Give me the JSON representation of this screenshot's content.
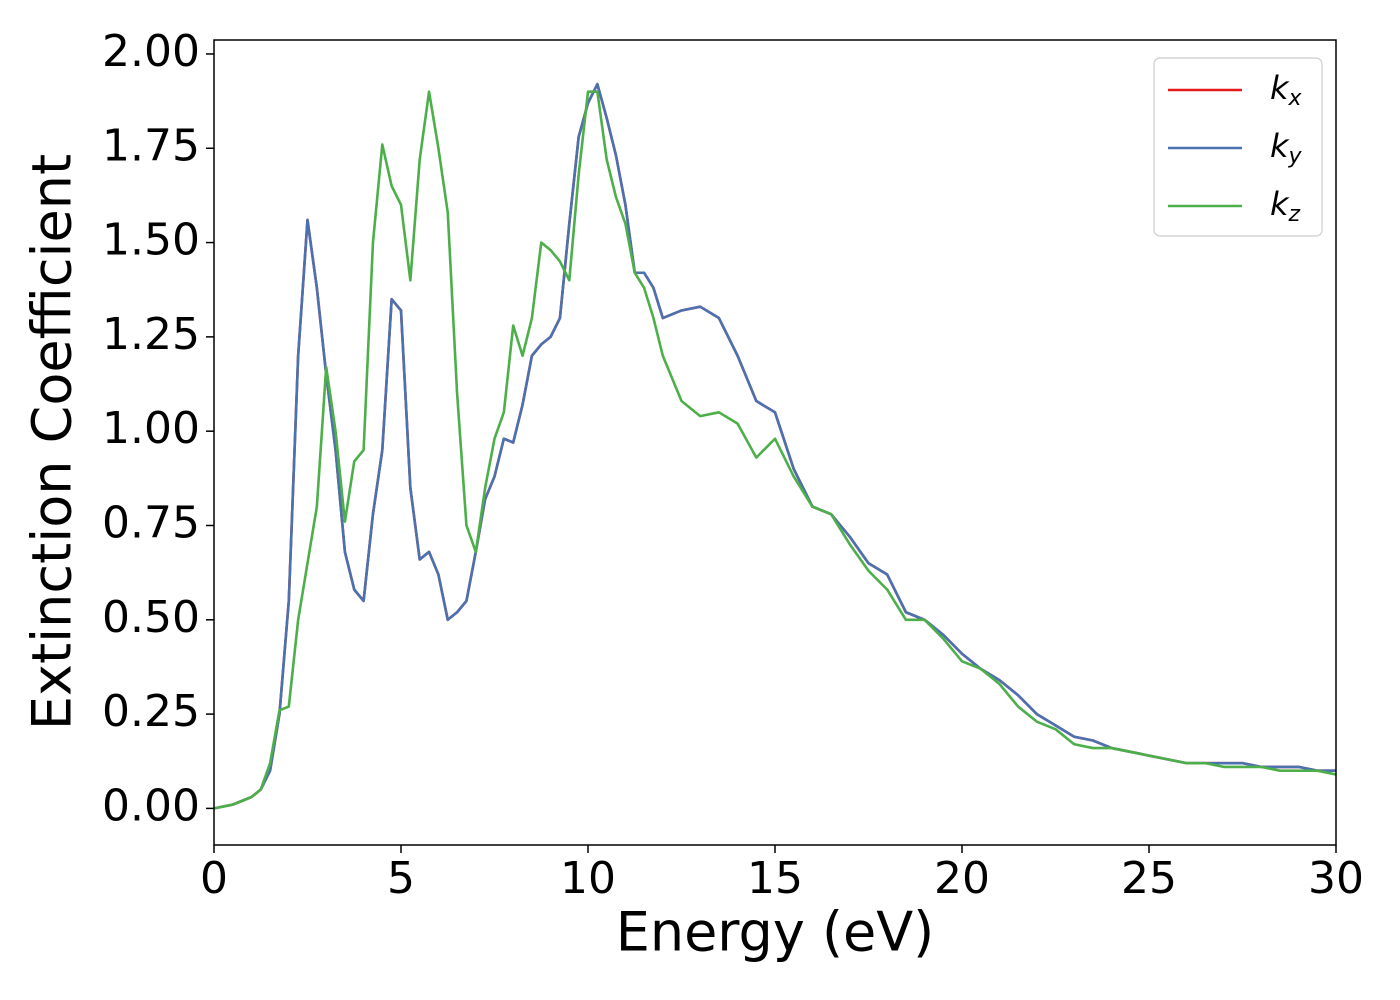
{
  "chart_data": {
    "type": "line",
    "x_label": "Energy (eV)",
    "y_label": "Extinction Coefficient",
    "x": [
      0,
      0.25,
      0.5,
      0.75,
      1,
      1.25,
      1.5,
      1.75,
      2,
      2.25,
      2.5,
      2.75,
      3,
      3.25,
      3.5,
      3.75,
      4,
      4.25,
      4.5,
      4.75,
      5,
      5.25,
      5.5,
      5.75,
      6,
      6.25,
      6.5,
      6.75,
      7,
      7.25,
      7.5,
      7.75,
      8,
      8.25,
      8.5,
      8.75,
      9,
      9.25,
      9.5,
      9.75,
      10,
      10.25,
      10.5,
      10.75,
      11,
      11.25,
      11.5,
      11.75,
      12,
      12.5,
      13,
      13.5,
      14,
      14.5,
      15,
      15.5,
      16,
      16.5,
      17,
      17.5,
      18,
      18.5,
      19,
      19.5,
      20,
      20.5,
      21,
      21.5,
      22,
      22.5,
      23,
      23.5,
      24,
      24.5,
      25,
      25.5,
      26,
      26.5,
      27,
      27.5,
      28,
      28.5,
      29,
      29.5,
      30
    ],
    "series": [
      {
        "name": "kx",
        "color": "#e41a1c",
        "values": [
          0,
          0.005,
          0.01,
          0.02,
          0.03,
          0.05,
          0.1,
          0.25,
          0.55,
          1.2,
          1.56,
          1.38,
          1.15,
          0.95,
          0.68,
          0.58,
          0.55,
          0.78,
          0.95,
          1.35,
          1.32,
          0.85,
          0.66,
          0.68,
          0.62,
          0.5,
          0.52,
          0.55,
          0.68,
          0.82,
          0.88,
          0.98,
          0.97,
          1.07,
          1.2,
          1.23,
          1.25,
          1.3,
          1.55,
          1.78,
          1.87,
          1.92,
          1.83,
          1.73,
          1.6,
          1.42,
          1.42,
          1.38,
          1.3,
          1.32,
          1.33,
          1.3,
          1.2,
          1.08,
          1.05,
          0.9,
          0.8,
          0.78,
          0.72,
          0.65,
          0.62,
          0.52,
          0.5,
          0.46,
          0.41,
          0.37,
          0.34,
          0.3,
          0.25,
          0.22,
          0.19,
          0.18,
          0.16,
          0.15,
          0.14,
          0.13,
          0.12,
          0.12,
          0.12,
          0.12,
          0.11,
          0.11,
          0.11,
          0.1,
          0.1
        ]
      },
      {
        "name": "ky",
        "color": "#4a72b0",
        "values": [
          0,
          0.005,
          0.01,
          0.02,
          0.03,
          0.05,
          0.1,
          0.25,
          0.55,
          1.2,
          1.56,
          1.38,
          1.15,
          0.95,
          0.68,
          0.58,
          0.55,
          0.78,
          0.95,
          1.35,
          1.32,
          0.85,
          0.66,
          0.68,
          0.62,
          0.5,
          0.52,
          0.55,
          0.68,
          0.82,
          0.88,
          0.98,
          0.97,
          1.07,
          1.2,
          1.23,
          1.25,
          1.3,
          1.55,
          1.78,
          1.87,
          1.92,
          1.83,
          1.73,
          1.6,
          1.42,
          1.42,
          1.38,
          1.3,
          1.32,
          1.33,
          1.3,
          1.2,
          1.08,
          1.05,
          0.9,
          0.8,
          0.78,
          0.72,
          0.65,
          0.62,
          0.52,
          0.5,
          0.46,
          0.41,
          0.37,
          0.34,
          0.3,
          0.25,
          0.22,
          0.19,
          0.18,
          0.16,
          0.15,
          0.14,
          0.13,
          0.12,
          0.12,
          0.12,
          0.12,
          0.11,
          0.11,
          0.11,
          0.1,
          0.1
        ]
      },
      {
        "name": "kz",
        "color": "#4daf4a",
        "values": [
          0,
          0.005,
          0.01,
          0.02,
          0.03,
          0.05,
          0.12,
          0.26,
          0.27,
          0.5,
          0.65,
          0.8,
          1.17,
          1.0,
          0.76,
          0.92,
          0.95,
          1.5,
          1.76,
          1.65,
          1.6,
          1.4,
          1.72,
          1.9,
          1.75,
          1.58,
          1.1,
          0.75,
          0.68,
          0.85,
          0.98,
          1.05,
          1.28,
          1.2,
          1.3,
          1.5,
          1.48,
          1.45,
          1.4,
          1.68,
          1.9,
          1.9,
          1.72,
          1.62,
          1.55,
          1.42,
          1.38,
          1.3,
          1.2,
          1.08,
          1.04,
          1.05,
          1.02,
          0.93,
          0.98,
          0.88,
          0.8,
          0.78,
          0.7,
          0.63,
          0.58,
          0.5,
          0.5,
          0.45,
          0.39,
          0.37,
          0.33,
          0.27,
          0.23,
          0.21,
          0.17,
          0.16,
          0.16,
          0.15,
          0.14,
          0.13,
          0.12,
          0.12,
          0.11,
          0.11,
          0.11,
          0.1,
          0.1,
          0.1,
          0.09
        ]
      }
    ],
    "xlim": [
      0,
      30
    ],
    "xticks": [
      0,
      5,
      10,
      15,
      20,
      25,
      30
    ],
    "ylim": [
      -0.097,
      2.037
    ],
    "yticks": [
      {
        "value": 0,
        "label": "0.00"
      },
      {
        "value": 0.25,
        "label": "0.25"
      },
      {
        "value": 0.5,
        "label": "0.50"
      },
      {
        "value": 0.75,
        "label": "0.75"
      },
      {
        "value": 1,
        "label": "1.00"
      },
      {
        "value": 1.25,
        "label": "1.25"
      },
      {
        "value": 1.5,
        "label": "1.50"
      },
      {
        "value": 1.75,
        "label": "1.75"
      },
      {
        "value": 2,
        "label": "2.00"
      }
    ],
    "legend": "upper right",
    "grid": false
  }
}
